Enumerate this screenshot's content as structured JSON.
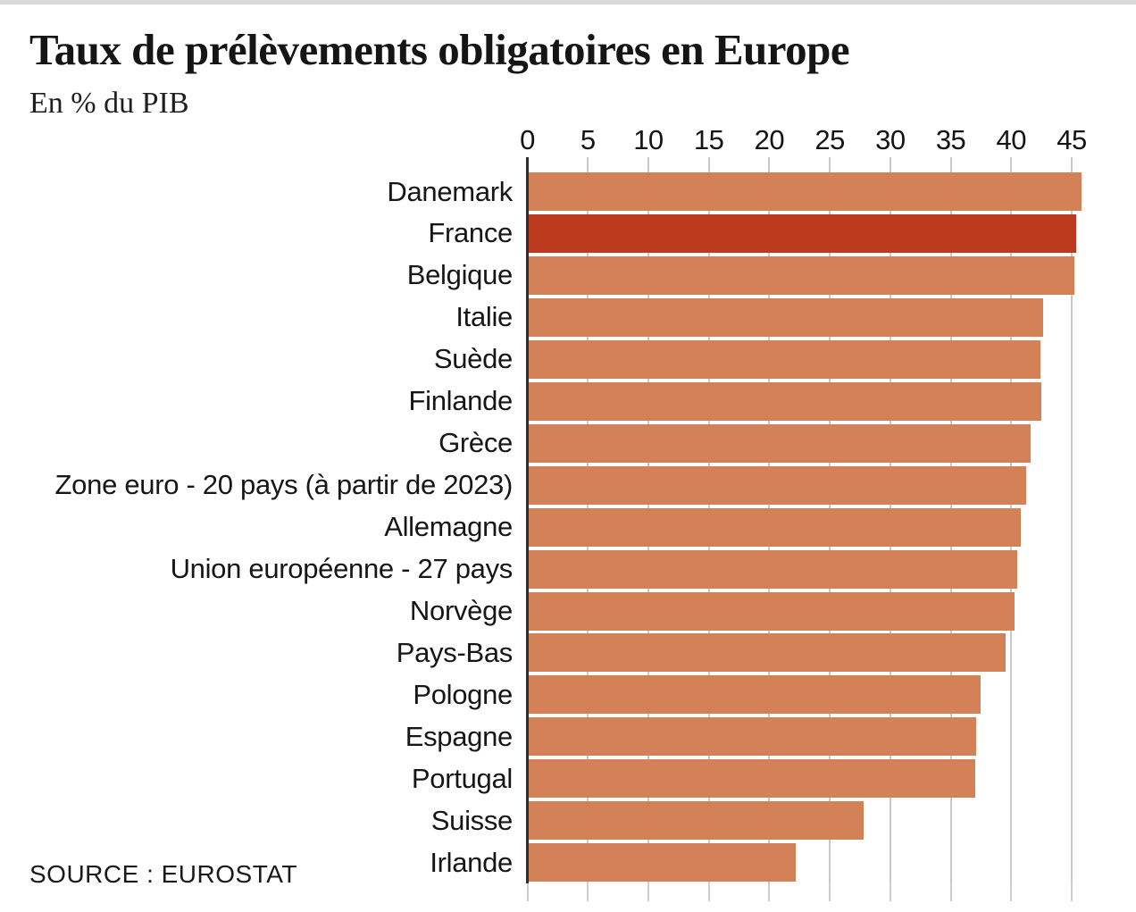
{
  "header": {
    "title": "Taux de prélèvements obligatoires en Europe",
    "subtitle": "En % du PIB"
  },
  "footer": {
    "source": "SOURCE : EUROSTAT"
  },
  "colors": {
    "bar": "#d58157",
    "highlight_bar": "#bc3a1e",
    "gridline": "#c9c9c9",
    "axis_line": "#2e2e2e",
    "text": "#1a1a1a",
    "background": "#ffffff"
  },
  "chart_data": {
    "type": "bar",
    "orientation": "horizontal",
    "title": "Taux de prélèvements obligatoires en Europe",
    "subtitle": "En % du PIB",
    "source": "SOURCE : EUROSTAT",
    "xlabel": "",
    "ylabel": "",
    "unit": "% du PIB",
    "xlim": [
      0,
      46
    ],
    "xticks": [
      0,
      5,
      10,
      15,
      20,
      25,
      30,
      35,
      40,
      45
    ],
    "grid": true,
    "legend": false,
    "bar_color": "#d58157",
    "highlight": {
      "category": "France",
      "index": 1,
      "color": "#bc3a1e"
    },
    "categories": [
      "Danemark",
      "France",
      "Belgique",
      "Italie",
      "Suède",
      "Finlande",
      "Grèce",
      "Zone euro - 20 pays (à partir de 2023)",
      "Allemagne",
      "Union européenne - 27 pays",
      "Norvège",
      "Pays-Bas",
      "Pologne",
      "Espagne",
      "Portugal",
      "Suisse",
      "Irlande"
    ],
    "values": [
      45.8,
      45.4,
      45.2,
      42.6,
      42.4,
      42.5,
      41.6,
      41.2,
      40.8,
      40.5,
      40.3,
      39.5,
      37.5,
      37.1,
      37.0,
      27.8,
      22.2
    ]
  }
}
